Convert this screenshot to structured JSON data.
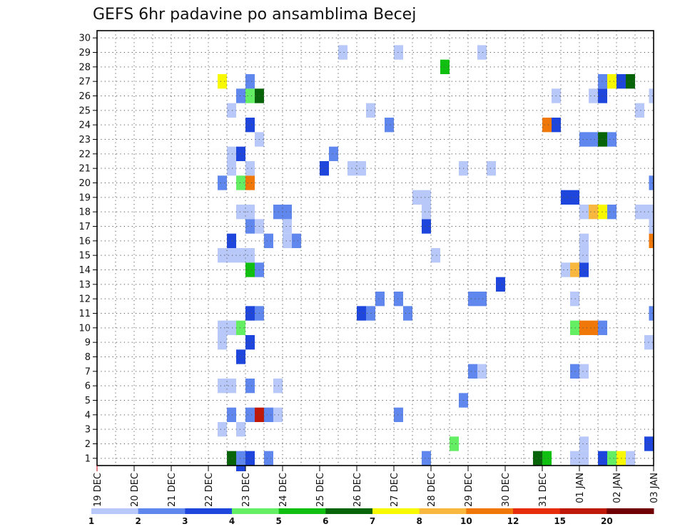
{
  "chart_data": {
    "type": "heatmap",
    "title": "GEFS 6hr padavine po ansamblima Becej",
    "y_categories": [
      "1",
      "2",
      "3",
      "4",
      "5",
      "6",
      "7",
      "8",
      "9",
      "10",
      "11",
      "12",
      "13",
      "14",
      "15",
      "16",
      "17",
      "18",
      "19",
      "20",
      "21",
      "22",
      "23",
      "24",
      "25",
      "26",
      "27",
      "28",
      "29",
      "30"
    ],
    "x_tick_labels": [
      "19 DEC",
      "20 DEC",
      "21 DEC",
      "22 DEC",
      "23 DEC",
      "24 DEC",
      "25 DEC",
      "26 DEC",
      "27 DEC",
      "28 DEC",
      "29 DEC",
      "30 DEC",
      "31 DEC",
      "01 JAN",
      "02 JAN",
      "03 JAN"
    ],
    "x_range_days": [
      0,
      15
    ],
    "y_range": [
      0.5,
      30.5
    ],
    "grid": "dotted",
    "colorbar": {
      "labels": [
        "1",
        "2",
        "3",
        "4",
        "5",
        "6",
        "7",
        "8",
        "10",
        "12",
        "15",
        "20"
      ],
      "colors": [
        "#b8c8f8",
        "#5f87ee",
        "#1e46dc",
        "#64ee64",
        "#10c010",
        "#086408",
        "#f8f800",
        "#f8b840",
        "#f07808",
        "#e62c08",
        "#c01808",
        "#700000"
      ]
    },
    "cells": [
      {
        "x": 3.625,
        "y": 1,
        "c": 6
      },
      {
        "x": 3.875,
        "y": 1,
        "c": 2
      },
      {
        "x": 4.125,
        "y": 1,
        "c": 3
      },
      {
        "x": 4.625,
        "y": 1,
        "c": 2
      },
      {
        "x": 8.875,
        "y": 1,
        "c": 2
      },
      {
        "x": 11.875,
        "y": 1,
        "c": 6
      },
      {
        "x": 12.125,
        "y": 1,
        "c": 5
      },
      {
        "x": 12.875,
        "y": 1,
        "c": 1
      },
      {
        "x": 13.125,
        "y": 1,
        "c": 1
      },
      {
        "x": 13.625,
        "y": 1,
        "c": 3
      },
      {
        "x": 13.875,
        "y": 1,
        "c": 4
      },
      {
        "x": 14.125,
        "y": 1,
        "c": 7
      },
      {
        "x": 14.375,
        "y": 1,
        "c": 1
      },
      {
        "x": 9.625,
        "y": 2,
        "c": 4
      },
      {
        "x": 13.125,
        "y": 2,
        "c": 1
      },
      {
        "x": 14.875,
        "y": 2,
        "c": 3
      },
      {
        "x": 3.375,
        "y": 3,
        "c": 1
      },
      {
        "x": 3.875,
        "y": 3,
        "c": 1
      },
      {
        "x": 3.625,
        "y": 4,
        "c": 2
      },
      {
        "x": 4.125,
        "y": 4,
        "c": 2
      },
      {
        "x": 4.375,
        "y": 4,
        "c": 11
      },
      {
        "x": 4.625,
        "y": 4,
        "c": 2
      },
      {
        "x": 4.875,
        "y": 4,
        "c": 1
      },
      {
        "x": 8.125,
        "y": 4,
        "c": 2
      },
      {
        "x": 9.875,
        "y": 5,
        "c": 2
      },
      {
        "x": 3.375,
        "y": 6,
        "c": 1
      },
      {
        "x": 3.625,
        "y": 6,
        "c": 1
      },
      {
        "x": 4.125,
        "y": 6,
        "c": 2
      },
      {
        "x": 4.875,
        "y": 6,
        "c": 1
      },
      {
        "x": 10.125,
        "y": 7,
        "c": 2
      },
      {
        "x": 10.375,
        "y": 7,
        "c": 1
      },
      {
        "x": 12.875,
        "y": 7,
        "c": 2
      },
      {
        "x": 13.125,
        "y": 7,
        "c": 1
      },
      {
        "x": 3.875,
        "y": 8,
        "c": 3
      },
      {
        "x": 3.375,
        "y": 9,
        "c": 1
      },
      {
        "x": 4.125,
        "y": 9,
        "c": 3
      },
      {
        "x": 14.875,
        "y": 9,
        "c": 1
      },
      {
        "x": 3.375,
        "y": 10,
        "c": 1
      },
      {
        "x": 3.625,
        "y": 10,
        "c": 1
      },
      {
        "x": 3.875,
        "y": 10,
        "c": 4
      },
      {
        "x": 12.875,
        "y": 10,
        "c": 4
      },
      {
        "x": 13.125,
        "y": 10,
        "c": 9
      },
      {
        "x": 13.375,
        "y": 10,
        "c": 9
      },
      {
        "x": 13.625,
        "y": 10,
        "c": 2
      },
      {
        "x": 4.125,
        "y": 11,
        "c": 3
      },
      {
        "x": 4.375,
        "y": 11,
        "c": 2
      },
      {
        "x": 7.125,
        "y": 11,
        "c": 3
      },
      {
        "x": 7.375,
        "y": 11,
        "c": 2
      },
      {
        "x": 8.375,
        "y": 11,
        "c": 2
      },
      {
        "x": 15.0,
        "y": 11,
        "c": 2
      },
      {
        "x": 7.625,
        "y": 12,
        "c": 2
      },
      {
        "x": 8.125,
        "y": 12,
        "c": 2
      },
      {
        "x": 10.125,
        "y": 12,
        "c": 2
      },
      {
        "x": 10.375,
        "y": 12,
        "c": 2
      },
      {
        "x": 12.875,
        "y": 12,
        "c": 1
      },
      {
        "x": 10.875,
        "y": 13,
        "c": 3
      },
      {
        "x": 4.125,
        "y": 14,
        "c": 5
      },
      {
        "x": 4.375,
        "y": 14,
        "c": 2
      },
      {
        "x": 12.625,
        "y": 14,
        "c": 1
      },
      {
        "x": 12.875,
        "y": 14,
        "c": 8
      },
      {
        "x": 13.125,
        "y": 14,
        "c": 3
      },
      {
        "x": 3.375,
        "y": 15,
        "c": 1
      },
      {
        "x": 3.625,
        "y": 15,
        "c": 1
      },
      {
        "x": 3.875,
        "y": 15,
        "c": 1
      },
      {
        "x": 4.125,
        "y": 15,
        "c": 1
      },
      {
        "x": 9.125,
        "y": 15,
        "c": 1
      },
      {
        "x": 13.125,
        "y": 15,
        "c": 1
      },
      {
        "x": 3.625,
        "y": 16,
        "c": 3
      },
      {
        "x": 4.625,
        "y": 16,
        "c": 2
      },
      {
        "x": 5.125,
        "y": 16,
        "c": 1
      },
      {
        "x": 5.375,
        "y": 16,
        "c": 2
      },
      {
        "x": 13.125,
        "y": 16,
        "c": 1
      },
      {
        "x": 15.0,
        "y": 16,
        "c": 9
      },
      {
        "x": 4.125,
        "y": 17,
        "c": 2
      },
      {
        "x": 4.375,
        "y": 17,
        "c": 1
      },
      {
        "x": 5.125,
        "y": 17,
        "c": 1
      },
      {
        "x": 8.875,
        "y": 17,
        "c": 3
      },
      {
        "x": 15.0,
        "y": 17,
        "c": 1
      },
      {
        "x": 3.875,
        "y": 18,
        "c": 1
      },
      {
        "x": 4.125,
        "y": 18,
        "c": 1
      },
      {
        "x": 4.875,
        "y": 18,
        "c": 2
      },
      {
        "x": 5.125,
        "y": 18,
        "c": 2
      },
      {
        "x": 8.875,
        "y": 18,
        "c": 1
      },
      {
        "x": 13.125,
        "y": 18,
        "c": 1
      },
      {
        "x": 13.375,
        "y": 18,
        "c": 8
      },
      {
        "x": 13.625,
        "y": 18,
        "c": 7
      },
      {
        "x": 13.875,
        "y": 18,
        "c": 2
      },
      {
        "x": 14.625,
        "y": 18,
        "c": 1
      },
      {
        "x": 14.875,
        "y": 18,
        "c": 1
      },
      {
        "x": 8.625,
        "y": 19,
        "c": 1
      },
      {
        "x": 8.875,
        "y": 19,
        "c": 1
      },
      {
        "x": 12.625,
        "y": 19,
        "c": 3
      },
      {
        "x": 12.875,
        "y": 19,
        "c": 3
      },
      {
        "x": 3.375,
        "y": 20,
        "c": 2
      },
      {
        "x": 3.875,
        "y": 20,
        "c": 4
      },
      {
        "x": 4.125,
        "y": 20,
        "c": 9
      },
      {
        "x": 15.0,
        "y": 20,
        "c": 2
      },
      {
        "x": 3.625,
        "y": 21,
        "c": 1
      },
      {
        "x": 4.125,
        "y": 21,
        "c": 1
      },
      {
        "x": 6.125,
        "y": 21,
        "c": 3
      },
      {
        "x": 6.875,
        "y": 21,
        "c": 1
      },
      {
        "x": 7.125,
        "y": 21,
        "c": 1
      },
      {
        "x": 9.875,
        "y": 21,
        "c": 1
      },
      {
        "x": 10.625,
        "y": 21,
        "c": 1
      },
      {
        "x": 3.625,
        "y": 22,
        "c": 1
      },
      {
        "x": 3.875,
        "y": 22,
        "c": 3
      },
      {
        "x": 6.375,
        "y": 22,
        "c": 2
      },
      {
        "x": 4.375,
        "y": 23,
        "c": 1
      },
      {
        "x": 13.125,
        "y": 23,
        "c": 2
      },
      {
        "x": 13.375,
        "y": 23,
        "c": 2
      },
      {
        "x": 13.625,
        "y": 23,
        "c": 6
      },
      {
        "x": 13.875,
        "y": 23,
        "c": 2
      },
      {
        "x": 4.125,
        "y": 24,
        "c": 3
      },
      {
        "x": 7.875,
        "y": 24,
        "c": 2
      },
      {
        "x": 12.125,
        "y": 24,
        "c": 9
      },
      {
        "x": 12.375,
        "y": 24,
        "c": 3
      },
      {
        "x": 3.625,
        "y": 25,
        "c": 1
      },
      {
        "x": 7.375,
        "y": 25,
        "c": 1
      },
      {
        "x": 14.625,
        "y": 25,
        "c": 1
      },
      {
        "x": 3.875,
        "y": 26,
        "c": 2
      },
      {
        "x": 4.125,
        "y": 26,
        "c": 4
      },
      {
        "x": 4.375,
        "y": 26,
        "c": 6
      },
      {
        "x": 12.375,
        "y": 26,
        "c": 1
      },
      {
        "x": 13.375,
        "y": 26,
        "c": 1
      },
      {
        "x": 13.625,
        "y": 26,
        "c": 3
      },
      {
        "x": 15.0,
        "y": 26,
        "c": 1
      },
      {
        "x": 3.375,
        "y": 27,
        "c": 7
      },
      {
        "x": 4.125,
        "y": 27,
        "c": 2
      },
      {
        "x": 13.625,
        "y": 27,
        "c": 2
      },
      {
        "x": 13.875,
        "y": 27,
        "c": 7
      },
      {
        "x": 14.125,
        "y": 27,
        "c": 3
      },
      {
        "x": 14.375,
        "y": 27,
        "c": 6
      },
      {
        "x": 9.375,
        "y": 28,
        "c": 5
      },
      {
        "x": 6.625,
        "y": 29,
        "c": 1
      },
      {
        "x": 8.125,
        "y": 29,
        "c": 1
      },
      {
        "x": 10.375,
        "y": 29,
        "c": 1
      },
      {
        "x": 3.875,
        "y": 0,
        "c": 3
      }
    ]
  }
}
